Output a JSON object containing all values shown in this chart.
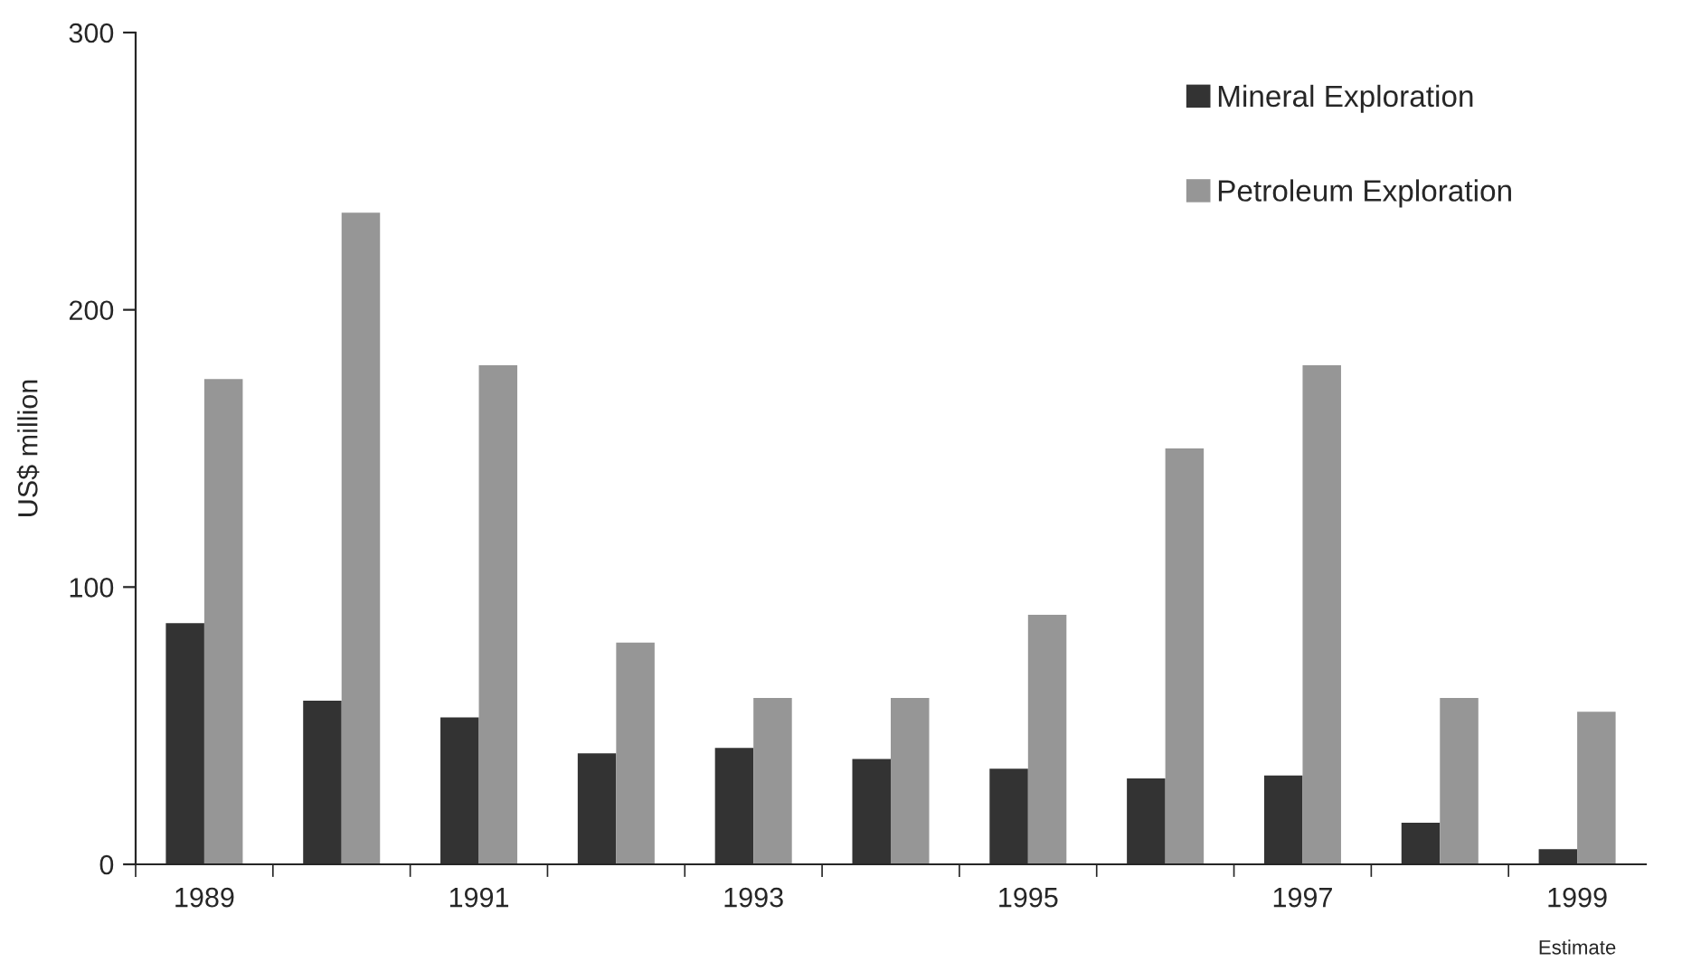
{
  "chart_data": {
    "type": "bar",
    "ylabel": "US$ million",
    "categories": [
      "1989",
      null,
      "1991",
      null,
      "1993",
      null,
      "1995",
      null,
      "1997",
      null,
      "1999"
    ],
    "series": [
      {
        "name": "Mineral Exploration",
        "color": "#333333",
        "values": [
          87,
          59,
          53,
          40,
          42,
          38,
          34.5,
          31,
          32,
          15,
          5.5
        ]
      },
      {
        "name": "Petroleum Exploration",
        "color": "#969696",
        "values": [
          175,
          235,
          180,
          80,
          60,
          60,
          90,
          150,
          180,
          60,
          55
        ]
      }
    ],
    "ylim": [
      0,
      300
    ],
    "yticks": [
      0,
      100,
      200,
      300
    ],
    "legend": "top right",
    "grid": false,
    "annotations": [
      "Estimate"
    ]
  }
}
